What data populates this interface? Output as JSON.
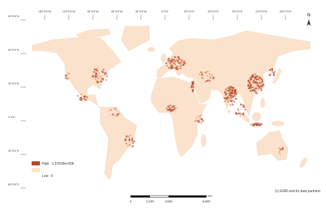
{
  "longitude_labels": [
    "150°0'0\"W",
    "120°0'0\"W",
    "90°0'0\"W",
    "60°0'0\"W",
    "30°0'0\"W",
    "0°0'0\"",
    "30°0'0\"E",
    "60°0'0\"E",
    "90°0'0\"E",
    "120°0'0\"E",
    "150°0'0\"E"
  ],
  "latitude_labels": [
    "90°0'0\"N",
    "60°0'0\"N",
    "30°0'0\"N",
    "0°0'0\"",
    "30°0'0\"S",
    "60°0'0\"S"
  ],
  "north_label": "N",
  "legend": {
    "high": "High : 1.57639e+006",
    "low": "Low : 0"
  },
  "scale_bar": {
    "labels": [
      "0",
      "2,400",
      "4,800",
      "9,600"
    ],
    "unit": "Km"
  },
  "attribution": "(c) ESRI and its data partners"
}
